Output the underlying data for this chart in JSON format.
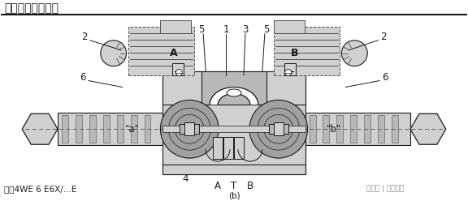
{
  "title": "功能说明，剖视图",
  "model_label": "型号4WE 6 E6X/...E",
  "bg_color": "#ffffff",
  "line_color": "#1a1a1a",
  "gray_fill": "#a0a0a0",
  "light_gray": "#d0d0d0",
  "med_gray": "#b8b8b8",
  "dark_gray": "#505050",
  "watermark": "网易号 | 机电天下",
  "labels": {
    "2_left": "2",
    "2_right": "2",
    "6_left": "6",
    "6_right": "6",
    "5_left": "5",
    "5_right": "5",
    "1": "1",
    "3": "3",
    "4": "4",
    "A_port": "A",
    "T_port": "T",
    "B_port": "B",
    "a_label": "\"a\"",
    "b_label": "\"b\"",
    "A_box": "A",
    "B_box": "B",
    "bottom_label": "(b)"
  },
  "title_fontsize": 10,
  "label_fontsize": 8.5,
  "small_fontsize": 7.5
}
